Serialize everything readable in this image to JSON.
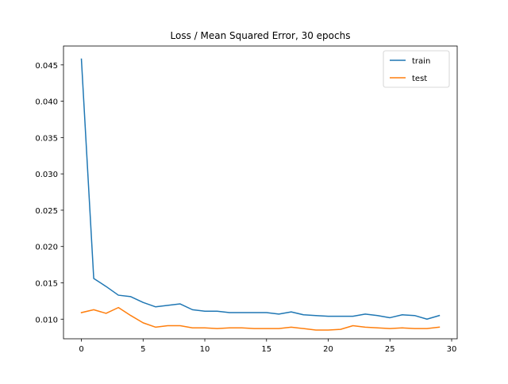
{
  "chart_data": {
    "type": "line",
    "title": "Loss / Mean Squared Error, 30 epochs",
    "xlabel": "",
    "ylabel": "",
    "x": [
      0,
      1,
      2,
      3,
      4,
      5,
      6,
      7,
      8,
      9,
      10,
      11,
      12,
      13,
      14,
      15,
      16,
      17,
      18,
      19,
      20,
      21,
      22,
      23,
      24,
      25,
      26,
      27,
      28,
      29
    ],
    "xlim": [
      -1.45,
      30.45
    ],
    "ylim": [
      0.0073,
      0.0476
    ],
    "xticks": [
      0,
      5,
      10,
      15,
      20,
      25,
      30
    ],
    "xtick_labels": [
      "0",
      "5",
      "10",
      "15",
      "20",
      "25",
      "30"
    ],
    "yticks": [
      0.01,
      0.015,
      0.02,
      0.025,
      0.03,
      0.035,
      0.04,
      0.045
    ],
    "ytick_labels": [
      "0.010",
      "0.015",
      "0.020",
      "0.025",
      "0.030",
      "0.035",
      "0.040",
      "0.045"
    ],
    "grid": false,
    "legend_position": "top-right",
    "series": [
      {
        "name": "train",
        "color": "#1f77b4",
        "values": [
          0.0458,
          0.0156,
          0.0145,
          0.0133,
          0.0131,
          0.0123,
          0.0117,
          0.0119,
          0.0121,
          0.0113,
          0.0111,
          0.0111,
          0.0109,
          0.0109,
          0.0109,
          0.0109,
          0.0107,
          0.011,
          0.0106,
          0.0105,
          0.0104,
          0.0104,
          0.0104,
          0.0107,
          0.0105,
          0.0102,
          0.0106,
          0.0105,
          0.01,
          0.0105
        ]
      },
      {
        "name": "test",
        "color": "#ff7f0e",
        "values": [
          0.0109,
          0.0113,
          0.0108,
          0.0116,
          0.0105,
          0.0095,
          0.0089,
          0.0091,
          0.0091,
          0.0088,
          0.0088,
          0.0087,
          0.0088,
          0.0088,
          0.0087,
          0.0087,
          0.0087,
          0.0089,
          0.0087,
          0.0085,
          0.0085,
          0.0086,
          0.0091,
          0.0089,
          0.0088,
          0.0087,
          0.0088,
          0.0087,
          0.0087,
          0.0089
        ]
      }
    ]
  }
}
